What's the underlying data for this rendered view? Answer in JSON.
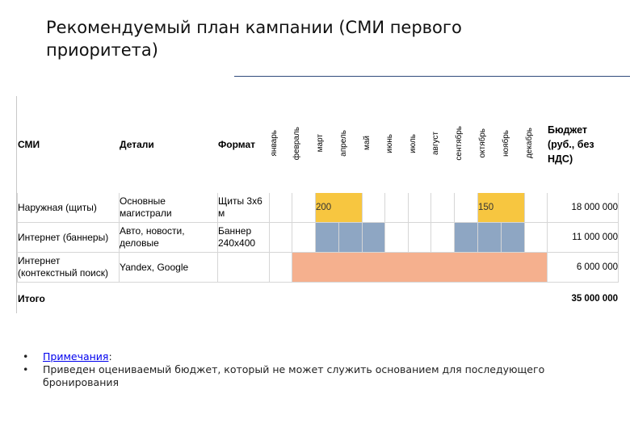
{
  "title": "Рекомендуемый план кампании (СМИ первого приоритета)",
  "table": {
    "headers": {
      "media": "СМИ",
      "details": "Детали",
      "format": "Формат",
      "months": [
        "январь",
        "февраль",
        "март",
        "апрель",
        "май",
        "июнь",
        "июль",
        "август",
        "сентябрь",
        "октябрь",
        "ноябрь",
        "декабрь"
      ],
      "budget_line1": "Бюджет",
      "budget_line2": "(руб., без",
      "budget_line3": "НДС)"
    },
    "rows": [
      {
        "media": "Наружная (щиты)",
        "details": "Основные магистрали",
        "format": "Щиты 3х6 м",
        "month_values": [
          "",
          "",
          "200",
          "",
          "",
          "",
          "",
          "",
          "",
          "150",
          "",
          ""
        ],
        "budget": "18 000 000"
      },
      {
        "media": "Интернет (баннеры)",
        "details": "Авто, новости, деловые",
        "format": "Баннер 240х400",
        "budget": "11 000 000"
      },
      {
        "media": "Интернет (контекстный поиск)",
        "details": "Yandex, Google",
        "format": "",
        "budget": "6 000 000"
      }
    ],
    "total_label": "Итого",
    "total_value": "35 000 000"
  },
  "notes": {
    "label": "Примечания",
    "colon": ":",
    "text": "Приведен оцениваемый бюджет, который не может служить основанием для последующего бронирования"
  },
  "colors": {
    "blue": "#8ea6c3",
    "orange": "#f5b08e",
    "yellow": "#f7c640",
    "rule": "#2f4b7c"
  }
}
